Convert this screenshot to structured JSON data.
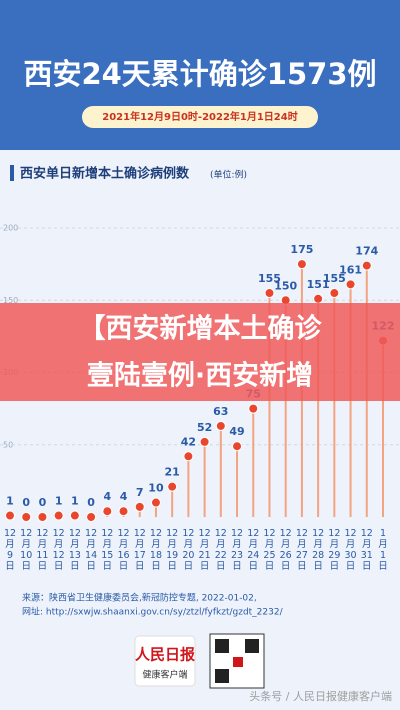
{
  "header": {
    "title": "西安24天累计确诊1573例",
    "period": "2021年12月9日0时-2022年1月1日24时"
  },
  "chart_data": {
    "type": "lollipop",
    "title": "西安单日新增本土确诊病例数",
    "unit": "(单位:例)",
    "categories": [
      "12月9日",
      "12月10日",
      "12月11日",
      "12月12日",
      "12月13日",
      "12月14日",
      "12月15日",
      "12月16日",
      "12月17日",
      "12月18日",
      "12月19日",
      "12月20日",
      "12月21日",
      "12月22日",
      "12月23日",
      "12月24日",
      "12月25日",
      "12月26日",
      "12月27日",
      "12月28日",
      "12月29日",
      "12月30日",
      "12月31日",
      "1月1日"
    ],
    "values": [
      1,
      0,
      0,
      1,
      1,
      0,
      4,
      4,
      7,
      10,
      21,
      42,
      52,
      63,
      49,
      75,
      155,
      150,
      175,
      151,
      155,
      161,
      174,
      122
    ],
    "color": "#e8472e",
    "ylim": [
      0,
      200
    ],
    "yticks": [
      50,
      100,
      150,
      200
    ],
    "grid": true
  },
  "banner": {
    "lines": [
      "【西安新增本土确诊",
      "壹陆壹例·西安新增"
    ]
  },
  "source": {
    "lines": [
      "来源：陕西省卫生健康委员会,新冠防控专题, 2022-01-02,",
      "网址: http://sxwjw.shaanxi.gov.cn/sy/ztzl/fyfkzt/gzdt_2232/"
    ]
  },
  "footer": {
    "logo": "人民日报",
    "logo_sub": "健康客户端",
    "watermark": "头条号 / 人民日报健康客户端"
  }
}
